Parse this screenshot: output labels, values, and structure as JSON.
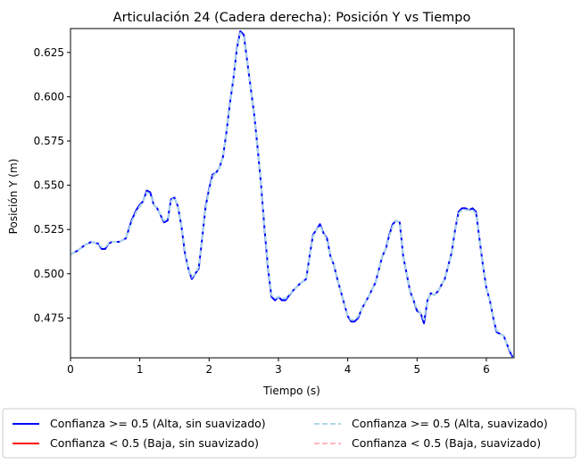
{
  "chart_data": {
    "type": "line",
    "title": "Articulación 24 (Cadera derecha): Posición Y vs Tiempo",
    "xlabel": "Tiempo (s)",
    "ylabel": "Posición Y (m)",
    "xlim": [
      0,
      6.4
    ],
    "ylim": [
      0.4525,
      0.6385
    ],
    "xticks": [
      0,
      1,
      2,
      3,
      4,
      5,
      6
    ],
    "yticks": [
      0.475,
      0.5,
      0.525,
      0.55,
      0.575,
      0.6,
      0.625
    ],
    "xtick_labels": [
      "0",
      "1",
      "2",
      "3",
      "4",
      "5",
      "6"
    ],
    "ytick_labels": [
      "0.475",
      "0.500",
      "0.525",
      "0.550",
      "0.575",
      "0.600",
      "0.625"
    ],
    "legend_position": "below",
    "series": [
      {
        "name": "Confianza >= 0.5 (Alta, sin suavizado)",
        "color": "#0000ff",
        "style": "solid",
        "x": [
          0,
          0.05,
          0.1,
          0.2,
          0.3,
          0.4,
          0.45,
          0.5,
          0.55,
          0.6,
          0.7,
          0.8,
          0.88,
          0.95,
          1.0,
          1.05,
          1.1,
          1.15,
          1.2,
          1.25,
          1.3,
          1.35,
          1.4,
          1.45,
          1.5,
          1.55,
          1.6,
          1.65,
          1.7,
          1.75,
          1.8,
          1.85,
          1.9,
          1.95,
          2.0,
          2.05,
          2.1,
          2.15,
          2.2,
          2.25,
          2.3,
          2.35,
          2.4,
          2.45,
          2.5,
          2.55,
          2.6,
          2.65,
          2.7,
          2.75,
          2.8,
          2.85,
          2.9,
          2.95,
          3.0,
          3.05,
          3.1,
          3.2,
          3.3,
          3.4,
          3.45,
          3.5,
          3.55,
          3.6,
          3.65,
          3.7,
          3.75,
          3.8,
          3.85,
          3.9,
          3.95,
          4.0,
          4.05,
          4.1,
          4.15,
          4.2,
          4.3,
          4.4,
          4.5,
          4.55,
          4.6,
          4.65,
          4.7,
          4.75,
          4.8,
          4.85,
          4.9,
          4.95,
          5.0,
          5.05,
          5.1,
          5.15,
          5.2,
          5.25,
          5.3,
          5.4,
          5.5,
          5.55,
          5.6,
          5.65,
          5.7,
          5.75,
          5.8,
          5.85,
          5.9,
          5.95,
          6.0,
          6.05,
          6.1,
          6.15,
          6.2,
          6.25,
          6.3,
          6.35,
          6.38
        ],
        "y": [
          0.511,
          0.512,
          0.513,
          0.516,
          0.518,
          0.517,
          0.514,
          0.514,
          0.517,
          0.518,
          0.518,
          0.52,
          0.53,
          0.536,
          0.539,
          0.541,
          0.547,
          0.546,
          0.539,
          0.537,
          0.533,
          0.529,
          0.53,
          0.542,
          0.543,
          0.538,
          0.527,
          0.512,
          0.503,
          0.497,
          0.5,
          0.503,
          0.52,
          0.538,
          0.548,
          0.556,
          0.557,
          0.56,
          0.566,
          0.58,
          0.596,
          0.61,
          0.627,
          0.637,
          0.635,
          0.62,
          0.605,
          0.59,
          0.571,
          0.55,
          0.525,
          0.503,
          0.487,
          0.485,
          0.487,
          0.485,
          0.485,
          0.49,
          0.494,
          0.497,
          0.51,
          0.522,
          0.525,
          0.528,
          0.523,
          0.52,
          0.51,
          0.505,
          0.497,
          0.49,
          0.483,
          0.476,
          0.473,
          0.473,
          0.475,
          0.48,
          0.487,
          0.495,
          0.51,
          0.514,
          0.522,
          0.528,
          0.53,
          0.529,
          0.51,
          0.5,
          0.49,
          0.485,
          0.479,
          0.478,
          0.472,
          0.485,
          0.489,
          0.488,
          0.49,
          0.497,
          0.512,
          0.525,
          0.535,
          0.537,
          0.537,
          0.536,
          0.537,
          0.535,
          0.52,
          0.505,
          0.492,
          0.485,
          0.475,
          0.467,
          0.466,
          0.465,
          0.46,
          0.455,
          0.453
        ]
      },
      {
        "name": "Confianza < 0.5 (Baja, sin suavizado)",
        "color": "#ff0000",
        "style": "solid",
        "x": [],
        "y": []
      },
      {
        "name": "Confianza >= 0.5 (Alta, suavizado)",
        "color": "#add8e6",
        "style": "dashed",
        "x": [
          0,
          0.05,
          0.1,
          0.2,
          0.3,
          0.4,
          0.45,
          0.5,
          0.55,
          0.6,
          0.7,
          0.8,
          0.88,
          0.95,
          1.0,
          1.05,
          1.1,
          1.15,
          1.2,
          1.25,
          1.3,
          1.35,
          1.4,
          1.45,
          1.5,
          1.55,
          1.6,
          1.65,
          1.7,
          1.75,
          1.8,
          1.85,
          1.9,
          1.95,
          2.0,
          2.05,
          2.1,
          2.15,
          2.2,
          2.25,
          2.3,
          2.35,
          2.4,
          2.45,
          2.5,
          2.55,
          2.6,
          2.65,
          2.7,
          2.75,
          2.8,
          2.85,
          2.9,
          2.95,
          3.0,
          3.05,
          3.1,
          3.2,
          3.3,
          3.4,
          3.45,
          3.5,
          3.55,
          3.6,
          3.65,
          3.7,
          3.75,
          3.8,
          3.85,
          3.9,
          3.95,
          4.0,
          4.05,
          4.1,
          4.15,
          4.2,
          4.3,
          4.4,
          4.5,
          4.55,
          4.6,
          4.65,
          4.7,
          4.75,
          4.8,
          4.85,
          4.9,
          4.95,
          5.0,
          5.05,
          5.1,
          5.15,
          5.2,
          5.25,
          5.3,
          5.4,
          5.5,
          5.55,
          5.6,
          5.65,
          5.7,
          5.75,
          5.8,
          5.85,
          5.9,
          5.95,
          6.0,
          6.05,
          6.1,
          6.15,
          6.2,
          6.25,
          6.3,
          6.35,
          6.38
        ],
        "y": [
          0.511,
          0.512,
          0.513,
          0.516,
          0.518,
          0.517,
          0.515,
          0.515,
          0.517,
          0.518,
          0.518,
          0.52,
          0.529,
          0.535,
          0.538,
          0.541,
          0.546,
          0.545,
          0.539,
          0.537,
          0.533,
          0.53,
          0.531,
          0.541,
          0.543,
          0.538,
          0.527,
          0.513,
          0.503,
          0.498,
          0.5,
          0.504,
          0.52,
          0.537,
          0.547,
          0.555,
          0.557,
          0.56,
          0.566,
          0.58,
          0.595,
          0.61,
          0.626,
          0.636,
          0.634,
          0.62,
          0.605,
          0.59,
          0.571,
          0.55,
          0.526,
          0.504,
          0.488,
          0.486,
          0.487,
          0.486,
          0.486,
          0.49,
          0.494,
          0.497,
          0.51,
          0.521,
          0.525,
          0.527,
          0.523,
          0.519,
          0.51,
          0.505,
          0.497,
          0.49,
          0.483,
          0.476,
          0.474,
          0.474,
          0.476,
          0.48,
          0.487,
          0.495,
          0.51,
          0.514,
          0.521,
          0.527,
          0.53,
          0.529,
          0.51,
          0.5,
          0.49,
          0.485,
          0.48,
          0.478,
          0.474,
          0.485,
          0.489,
          0.488,
          0.49,
          0.497,
          0.512,
          0.525,
          0.534,
          0.536,
          0.536,
          0.536,
          0.536,
          0.534,
          0.52,
          0.505,
          0.492,
          0.485,
          0.475,
          0.468,
          0.466,
          0.465,
          0.46,
          0.456,
          0.454
        ]
      },
      {
        "name": "Confianza < 0.5 (Baja, suavizado)",
        "color": "#ffb6c1",
        "style": "dashed",
        "x": [],
        "y": []
      }
    ]
  }
}
